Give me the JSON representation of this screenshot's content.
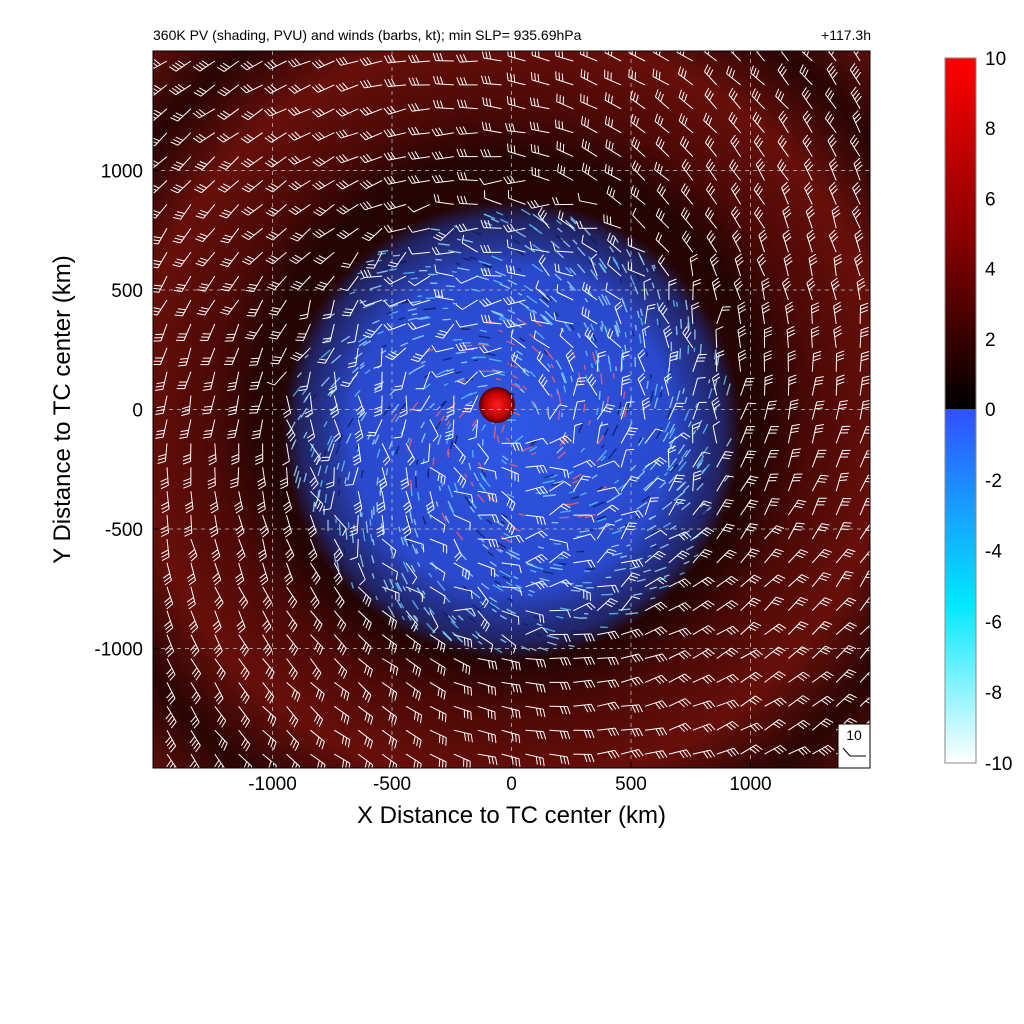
{
  "chart_data": {
    "type": "heatmap",
    "title": "360K PV (shading, PVU) and winds (barbs, kt); min SLP= 935.69hPa",
    "time_label": "+117.3h",
    "xlabel": "X Distance to TC center (km)",
    "ylabel": "Y Distance to TC center (km)",
    "xlim": [
      -1500,
      1500
    ],
    "ylim": [
      -1500,
      1500
    ],
    "x_ticks": [
      "-1000",
      "-500",
      "0",
      "500",
      "1000"
    ],
    "x_tick_values": [
      -1000,
      -500,
      0,
      500,
      1000
    ],
    "y_ticks": [
      "1000",
      "500",
      "0",
      "-500",
      "-1000"
    ],
    "y_tick_values": [
      1000,
      500,
      0,
      -500,
      -1000
    ],
    "grid": true,
    "colorbar": {
      "range": [
        -10,
        10
      ],
      "tick_labels": [
        "10",
        "8",
        "6",
        "4",
        "2",
        "0",
        "-2",
        "-4",
        "-6",
        "-8",
        "-10"
      ],
      "tick_values": [
        10,
        8,
        6,
        4,
        2,
        0,
        -2,
        -4,
        -6,
        -8,
        -10
      ],
      "colors": {
        "pos_max": "#ff0000",
        "pos_mid": "#8b0000",
        "zero_pos": "#000000",
        "zero_neg": "#3050ff",
        "neg_mid": "#00e8ff",
        "neg_min": "#ffffff"
      }
    },
    "barb_legend": {
      "label": "10",
      "speed_kt": 10
    },
    "field": {
      "background": "#5a0d08",
      "dark_ring_radii_km": [
        620,
        1300
      ],
      "blue_region_radius_km": 900,
      "eye_radius_km": 60,
      "eye_pv": 9
    }
  }
}
